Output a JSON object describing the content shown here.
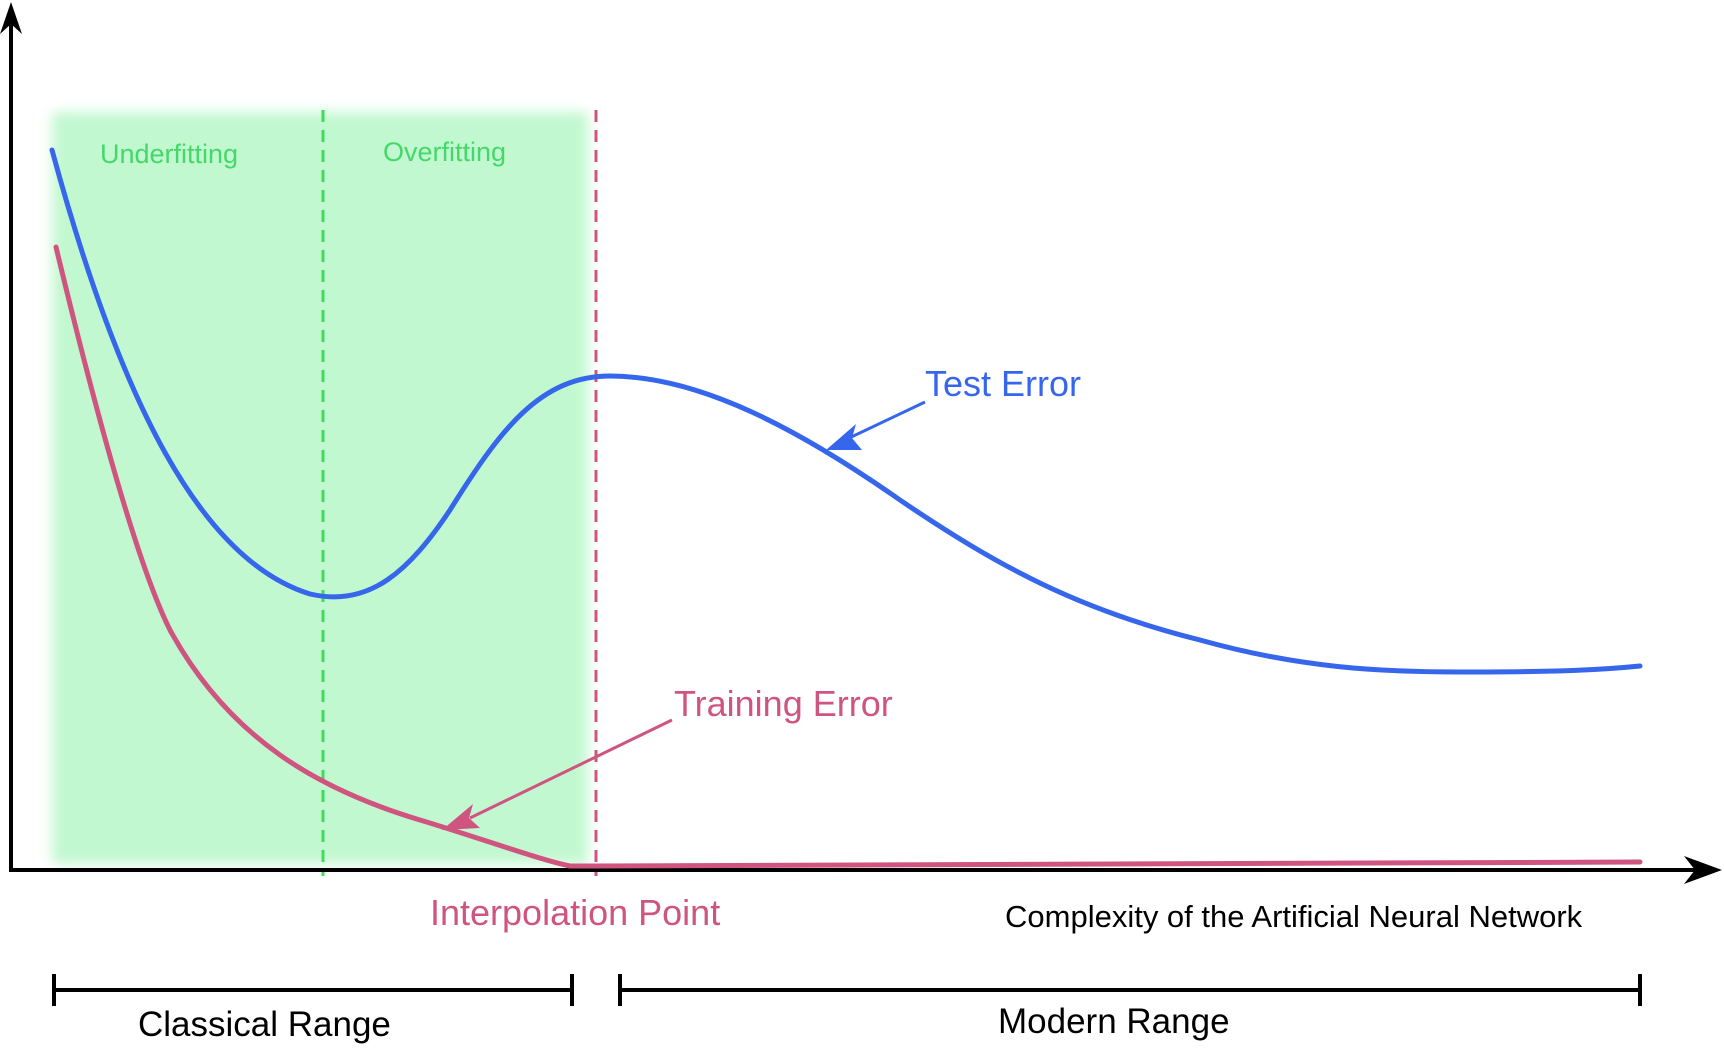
{
  "colors": {
    "test_error": "#3566ec",
    "training_error": "#cf5480",
    "region_fill": "#c2f8d0",
    "region_text": "#44d86a",
    "sweet_spot_line": "#3fdc5c",
    "interpolation_line": "#cf5480",
    "axis": "#000000"
  },
  "regions": {
    "underfitting": "Underfitting",
    "overfitting": "Overfitting"
  },
  "curves": {
    "test_error_label": "Test Error",
    "training_error_label": "Training Error"
  },
  "markers": {
    "interpolation_point": "Interpolation Point"
  },
  "axes": {
    "x_label": "Complexity of the Artificial Neural Network"
  },
  "ranges": {
    "classical": "Classical Range",
    "modern": "Modern Range"
  }
}
